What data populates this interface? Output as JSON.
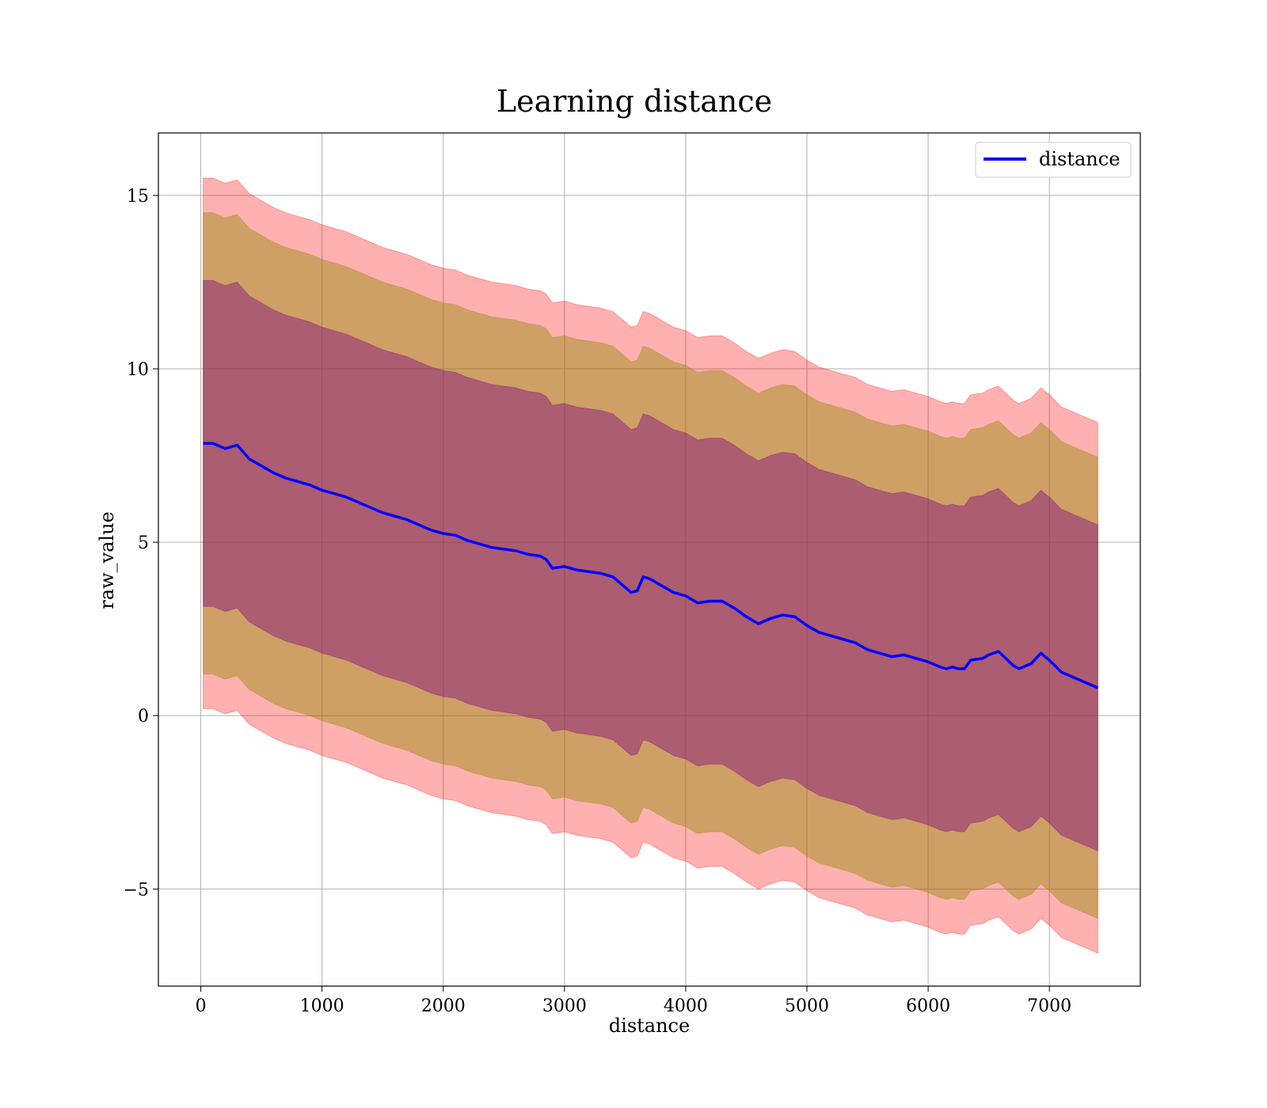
{
  "chart_data": {
    "type": "line",
    "title": "Learning distance",
    "xlabel": "distance",
    "ylabel": "raw_value",
    "xlim": [
      -350,
      7750
    ],
    "ylim": [
      -7.8,
      16.8
    ],
    "xticks": [
      0,
      1000,
      2000,
      3000,
      4000,
      5000,
      6000,
      7000
    ],
    "yticks": [
      -5,
      0,
      5,
      10,
      15
    ],
    "grid": true,
    "legend": {
      "placement": "top-right",
      "entries": [
        "distance"
      ]
    },
    "colors": {
      "line": "#0000ff",
      "band_outer": "#ff0000",
      "band_middle": "#8b8b00",
      "band_inner": "#800080"
    },
    "band_half_widths": {
      "inner": 4.7,
      "middle": 6.65,
      "outer": 7.65
    },
    "series": [
      {
        "name": "distance",
        "x": [
          20,
          100,
          200,
          300,
          400,
          500,
          600,
          700,
          800,
          900,
          1000,
          1100,
          1200,
          1300,
          1400,
          1500,
          1600,
          1700,
          1800,
          1900,
          2000,
          2100,
          2200,
          2300,
          2400,
          2500,
          2600,
          2700,
          2800,
          2850,
          2900,
          3000,
          3100,
          3200,
          3300,
          3400,
          3500,
          3550,
          3600,
          3650,
          3700,
          3800,
          3900,
          4000,
          4100,
          4200,
          4300,
          4400,
          4500,
          4600,
          4700,
          4800,
          4900,
          5000,
          5100,
          5200,
          5300,
          5400,
          5500,
          5600,
          5700,
          5800,
          5900,
          6000,
          6100,
          6150,
          6200,
          6250,
          6300,
          6350,
          6450,
          6500,
          6580,
          6700,
          6750,
          6850,
          6930,
          7000,
          7100,
          7400
        ],
        "y": [
          7.85,
          7.85,
          7.7,
          7.8,
          7.4,
          7.2,
          7.0,
          6.85,
          6.75,
          6.65,
          6.5,
          6.4,
          6.3,
          6.15,
          6.0,
          5.85,
          5.75,
          5.65,
          5.5,
          5.35,
          5.25,
          5.2,
          5.05,
          4.95,
          4.85,
          4.8,
          4.75,
          4.65,
          4.6,
          4.5,
          4.25,
          4.3,
          4.2,
          4.15,
          4.1,
          4.0,
          3.7,
          3.55,
          3.6,
          4.0,
          3.95,
          3.75,
          3.55,
          3.45,
          3.25,
          3.3,
          3.3,
          3.1,
          2.85,
          2.65,
          2.8,
          2.9,
          2.85,
          2.6,
          2.4,
          2.3,
          2.2,
          2.1,
          1.9,
          1.8,
          1.7,
          1.75,
          1.65,
          1.55,
          1.4,
          1.35,
          1.4,
          1.35,
          1.35,
          1.6,
          1.65,
          1.75,
          1.85,
          1.45,
          1.35,
          1.5,
          1.8,
          1.6,
          1.25,
          0.8
        ]
      }
    ]
  }
}
